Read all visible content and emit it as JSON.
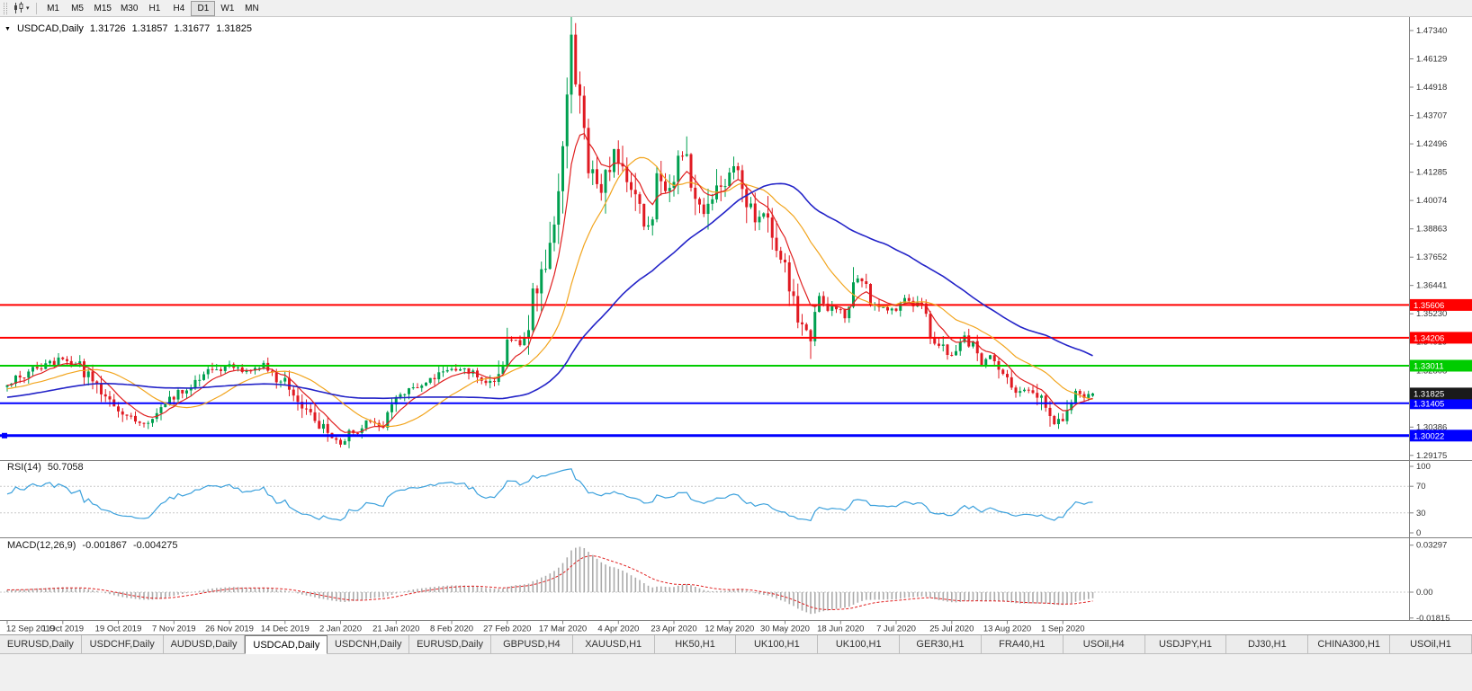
{
  "toolbar": {
    "timeframes": [
      "M1",
      "M5",
      "M15",
      "M30",
      "H1",
      "H4",
      "D1",
      "W1",
      "MN"
    ],
    "active_timeframe": "D1"
  },
  "chart_header": {
    "symbol": "USDCAD,Daily",
    "open": "1.31726",
    "high": "1.31857",
    "low": "1.31677",
    "close": "1.31825"
  },
  "price_axis": {
    "labels": [
      "1.47340",
      "1.46129",
      "1.44918",
      "1.43707",
      "1.42496",
      "1.41285",
      "1.40074",
      "1.38863",
      "1.37652",
      "1.36441",
      "1.35230",
      "1.34019",
      "1.32808",
      "1.31597",
      "1.30386",
      "1.29175"
    ]
  },
  "price_lines": [
    {
      "price": 1.35606,
      "label": "1.35606",
      "color": "#FF0000",
      "width": 2,
      "selected": false
    },
    {
      "price": 1.34206,
      "label": "1.34206",
      "color": "#FF0000",
      "width": 2,
      "selected": false
    },
    {
      "price": 1.33011,
      "label": "1.33011",
      "color": "#00CC00",
      "width": 2,
      "selected": false
    },
    {
      "price": 1.31405,
      "label": "1.31405",
      "color": "#0000FF",
      "width": 2,
      "selected": false
    },
    {
      "price": 1.30022,
      "label": "1.30022",
      "color": "#0000FF",
      "width": 3,
      "selected": true
    }
  ],
  "current_price": {
    "value": 1.31825,
    "label": "1.31825",
    "badge_color": "#1A1A1A"
  },
  "date_axis": [
    "12 Sep 2019",
    "1 Oct 2019",
    "19 Oct 2019",
    "7 Nov 2019",
    "26 Nov 2019",
    "14 Dec 2019",
    "2 Jan 2020",
    "21 Jan 2020",
    "8 Feb 2020",
    "27 Feb 2020",
    "17 Mar 2020",
    "4 Apr 2020",
    "23 Apr 2020",
    "12 May 2020",
    "30 May 2020",
    "18 Jun 2020",
    "7 Jul 2020",
    "25 Jul 2020",
    "13 Aug 2020",
    "1 Sep 2020"
  ],
  "rsi_pane": {
    "label": "RSI(14)",
    "value": "50.7058",
    "axis_labels": [
      "100",
      "70",
      "30",
      "0"
    ],
    "level_lines": [
      70,
      30
    ],
    "line_color": "#3AA0DC"
  },
  "macd_pane": {
    "label": "MACD(12,26,9)",
    "value_main": "-0.001867",
    "value_signal": "-0.004275",
    "axis_labels": [
      "0.03297",
      "0.00",
      "-0.01815"
    ],
    "histogram_color": "#ABABAB",
    "signal_color": "#E02020"
  },
  "tabs": {
    "active_index": 3,
    "items": [
      "EURUSD,Daily",
      "USDCHF,Daily",
      "AUDUSD,Daily",
      "USDCAD,Daily",
      "USDCNH,Daily",
      "EURUSD,Daily",
      "GBPUSD,H4",
      "XAUUSD,H1",
      "HK50,H1",
      "UK100,H1",
      "UK100,H1",
      "GER30,H1",
      "FRA40,H1",
      "USOil,H4",
      "USDJPY,H1",
      "DJ30,H1",
      "CHINA300,H1",
      "USOil,H1"
    ]
  },
  "colors": {
    "candle_up": "#00A050",
    "candle_down": "#E01A22",
    "ma_fast": "#E02020",
    "ma_mid": "#F2A51E",
    "ma_slow": "#2323C8",
    "axis_text": "#333333",
    "separator": "#808080"
  },
  "chart_data": {
    "type": "candlestick",
    "symbol": "USDCAD",
    "timeframe": "Daily",
    "title": "USDCAD,Daily",
    "y_range": [
      1.29175,
      1.4734
    ],
    "x_labels": [
      "12 Sep 2019",
      "1 Oct 2019",
      "19 Oct 2019",
      "7 Nov 2019",
      "26 Nov 2019",
      "14 Dec 2019",
      "2 Jan 2020",
      "21 Jan 2020",
      "8 Feb 2020",
      "27 Feb 2020",
      "17 Mar 2020",
      "4 Apr 2020",
      "23 Apr 2020",
      "12 May 2020",
      "30 May 2020",
      "18 Jun 2020",
      "7 Jul 2020",
      "25 Jul 2020",
      "13 Aug 2020",
      "1 Sep 2020"
    ],
    "candles_per_label": 13,
    "num_candles": 255,
    "current_ohlc": {
      "open": 1.31726,
      "high": 1.31857,
      "low": 1.31677,
      "close": 1.31825
    },
    "close_anchors": [
      [
        0,
        1.323
      ],
      [
        6,
        1.328
      ],
      [
        13,
        1.333
      ],
      [
        17,
        1.33
      ],
      [
        22,
        1.318
      ],
      [
        27,
        1.31
      ],
      [
        31,
        1.3055
      ],
      [
        34,
        1.309
      ],
      [
        39,
        1.316
      ],
      [
        44,
        1.323
      ],
      [
        49,
        1.329
      ],
      [
        52,
        1.33
      ],
      [
        56,
        1.328
      ],
      [
        60,
        1.33
      ],
      [
        64,
        1.324
      ],
      [
        68,
        1.317
      ],
      [
        72,
        1.308
      ],
      [
        76,
        1.2985
      ],
      [
        78,
        1.296
      ],
      [
        81,
        1.302
      ],
      [
        84,
        1.3065
      ],
      [
        88,
        1.305
      ],
      [
        91,
        1.314
      ],
      [
        95,
        1.32
      ],
      [
        99,
        1.323
      ],
      [
        104,
        1.329
      ],
      [
        107,
        1.33
      ],
      [
        110,
        1.325
      ],
      [
        113,
        1.323
      ],
      [
        116,
        1.331
      ],
      [
        118,
        1.343
      ],
      [
        121,
        1.34
      ],
      [
        124,
        1.366
      ],
      [
        126,
        1.376
      ],
      [
        128,
        1.393
      ],
      [
        130,
        1.425
      ],
      [
        132,
        1.466
      ],
      [
        133,
        1.448
      ],
      [
        134,
        1.451
      ],
      [
        136,
        1.418
      ],
      [
        138,
        1.403
      ],
      [
        140,
        1.409
      ],
      [
        142,
        1.421
      ],
      [
        144,
        1.414
      ],
      [
        146,
        1.401
      ],
      [
        148,
        1.396
      ],
      [
        150,
        1.388
      ],
      [
        152,
        1.409
      ],
      [
        154,
        1.403
      ],
      [
        156,
        1.413
      ],
      [
        158,
        1.422
      ],
      [
        160,
        1.407
      ],
      [
        162,
        1.395
      ],
      [
        164,
        1.394
      ],
      [
        166,
        1.407
      ],
      [
        168,
        1.409
      ],
      [
        170,
        1.413
      ],
      [
        172,
        1.406
      ],
      [
        174,
        1.395
      ],
      [
        176,
        1.393
      ],
      [
        178,
        1.3985
      ],
      [
        180,
        1.379
      ],
      [
        182,
        1.377
      ],
      [
        184,
        1.355
      ],
      [
        186,
        1.349
      ],
      [
        188,
        1.3395
      ],
      [
        190,
        1.361
      ],
      [
        192,
        1.354
      ],
      [
        194,
        1.356
      ],
      [
        196,
        1.351
      ],
      [
        198,
        1.363
      ],
      [
        200,
        1.368
      ],
      [
        202,
        1.359
      ],
      [
        204,
        1.357
      ],
      [
        206,
        1.354
      ],
      [
        208,
        1.355
      ],
      [
        210,
        1.36
      ],
      [
        212,
        1.356
      ],
      [
        214,
        1.353
      ],
      [
        216,
        1.344
      ],
      [
        218,
        1.341
      ],
      [
        220,
        1.335
      ],
      [
        222,
        1.334
      ],
      [
        224,
        1.342
      ],
      [
        226,
        1.337
      ],
      [
        228,
        1.329
      ],
      [
        230,
        1.335
      ],
      [
        232,
        1.33
      ],
      [
        234,
        1.325
      ],
      [
        236,
        1.319
      ],
      [
        238,
        1.321
      ],
      [
        240,
        1.32
      ],
      [
        242,
        1.315
      ],
      [
        244,
        1.306
      ],
      [
        246,
        1.305
      ],
      [
        248,
        1.313
      ],
      [
        250,
        1.3205
      ],
      [
        252,
        1.3165
      ],
      [
        254,
        1.31825
      ]
    ],
    "horizontal_lines": [
      1.35606,
      1.34206,
      1.33011,
      1.31405,
      1.30022
    ],
    "overlays": [
      {
        "name": "ma-fast",
        "approx": "EMA(8)",
        "color": "#E02020"
      },
      {
        "name": "ma-mid",
        "approx": "SMA(21)",
        "color": "#F2A51E"
      },
      {
        "name": "ma-slow",
        "approx": "SMA(55)",
        "color": "#2323C8"
      }
    ],
    "indicators": [
      {
        "name": "RSI",
        "period": 14,
        "current": 50.7058
      },
      {
        "name": "MACD",
        "fast": 12,
        "slow": 26,
        "signal": 9,
        "current_main": -0.001867,
        "current_signal": -0.004275
      }
    ]
  }
}
